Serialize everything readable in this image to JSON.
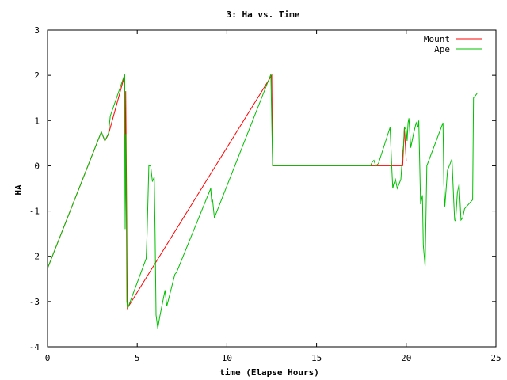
{
  "chart_data": {
    "type": "line",
    "title": "3: Ha vs. Time",
    "xlabel": "time (Elapse Hours)",
    "ylabel": "HA",
    "xlim": [
      0,
      25
    ],
    "ylim": [
      -4,
      3
    ],
    "xticks": [
      0,
      5,
      10,
      15,
      20,
      25
    ],
    "yticks": [
      -4,
      -3,
      -2,
      -1,
      0,
      1,
      2,
      3
    ],
    "xtick_labels": [
      "0",
      "5",
      "10",
      "15",
      "20",
      "25"
    ],
    "ytick_labels": [
      "-4",
      "-3",
      "-2",
      "-1",
      "0",
      "1",
      "2",
      "3"
    ],
    "grid": false,
    "legend_position": "top-right",
    "series": [
      {
        "name": "Mount",
        "color": "#ff0000",
        "x": [
          0.0,
          3.0,
          3.2,
          3.4,
          4.3,
          4.33,
          4.36,
          4.4,
          4.45,
          12.5,
          12.55,
          18.0,
          19.8,
          19.9,
          20.0
        ],
        "y": [
          -2.27,
          0.75,
          0.55,
          0.7,
          2.0,
          -1.0,
          1.65,
          -0.3,
          -3.15,
          2.0,
          0.0,
          0.0,
          0.0,
          0.85,
          0.1
        ]
      },
      {
        "name": "Ape",
        "color": "#00c000",
        "x": [
          0.0,
          3.0,
          3.1,
          3.2,
          3.4,
          3.5,
          4.3,
          4.33,
          4.37,
          4.42,
          4.47,
          5.5,
          5.55,
          5.65,
          5.75,
          5.85,
          5.95,
          6.0,
          6.05,
          6.15,
          6.25,
          6.55,
          6.65,
          7.1,
          7.2,
          9.1,
          9.15,
          9.2,
          9.3,
          9.35,
          12.45,
          12.55,
          18.0,
          18.1,
          18.2,
          18.3,
          18.45,
          19.1,
          19.2,
          19.25,
          19.3,
          19.4,
          19.5,
          19.7,
          19.8,
          19.85,
          19.9,
          20.0,
          20.05,
          20.1,
          20.15,
          20.25,
          20.4,
          20.55,
          20.65,
          20.7,
          20.8,
          20.9,
          20.95,
          21.05,
          21.15,
          22.05,
          22.1,
          22.15,
          22.3,
          22.55,
          22.65,
          22.7,
          22.75,
          22.85,
          22.95,
          23.05,
          23.15,
          23.25,
          23.7,
          23.75,
          23.85,
          23.95
        ],
        "y": [
          -2.27,
          0.75,
          0.65,
          0.55,
          0.72,
          1.1,
          2.02,
          -1.4,
          0.7,
          -3.0,
          -3.15,
          -2.05,
          -1.5,
          0.0,
          0.0,
          -0.35,
          -0.25,
          -1.5,
          -3.3,
          -3.6,
          -3.35,
          -2.75,
          -3.1,
          -2.4,
          -2.35,
          -0.5,
          -0.8,
          -0.75,
          -1.15,
          -1.1,
          2.02,
          0.0,
          0.0,
          0.08,
          0.12,
          0.0,
          0.05,
          0.85,
          -0.1,
          -0.5,
          -0.4,
          -0.3,
          -0.5,
          -0.3,
          0.3,
          0.45,
          0.85,
          0.8,
          0.55,
          0.95,
          1.05,
          0.4,
          0.7,
          0.95,
          0.85,
          1.0,
          -0.85,
          -0.65,
          -1.75,
          -2.22,
          0.0,
          0.95,
          -0.4,
          -0.9,
          -0.1,
          0.15,
          -0.8,
          -1.2,
          -1.22,
          -0.6,
          -0.4,
          -1.2,
          -1.15,
          -0.95,
          -0.75,
          1.5,
          1.55,
          1.6
        ]
      }
    ]
  }
}
